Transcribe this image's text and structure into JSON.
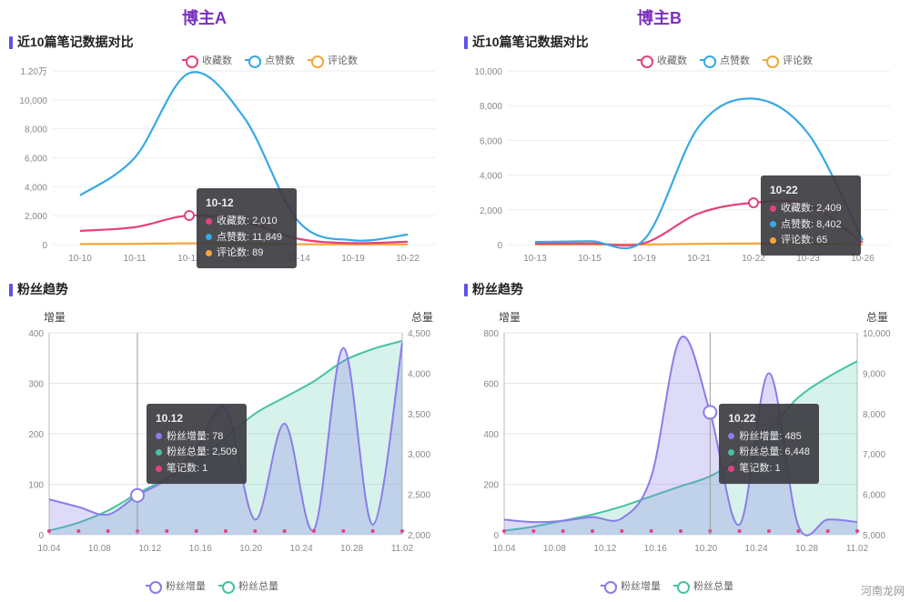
{
  "headers": {
    "a": "博主A",
    "b": "博主B",
    "color": "#7b2fbf"
  },
  "sections": {
    "notes_title": "近10篇笔记数据对比",
    "fans_title": "粉丝趋势"
  },
  "legend_top": [
    {
      "label": "收藏数",
      "color": "#e6407e"
    },
    {
      "label": "点赞数",
      "color": "#37a9e6"
    },
    {
      "label": "评论数",
      "color": "#f2a73b"
    }
  ],
  "legend_bottom": [
    {
      "label": "粉丝增量",
      "color": "#8a7de8"
    },
    {
      "label": "粉丝总量",
      "color": "#46c2a5"
    }
  ],
  "axis_titles": {
    "inc": "增量",
    "total": "总量"
  },
  "watermark": "河南龙网",
  "chartA_notes": {
    "ymax": 12000,
    "ylabels": [
      "0",
      "2,000",
      "4,000",
      "6,000",
      "8,000",
      "10,000",
      "1.20万"
    ],
    "x": [
      "10-10",
      "10-11",
      "10-12",
      "10-13",
      "10-14",
      "10-19",
      "10-22"
    ],
    "series": {
      "like": [
        3400,
        6000,
        11849,
        8800,
        1600,
        300,
        700
      ],
      "fav": [
        950,
        1200,
        2010,
        1600,
        400,
        100,
        200
      ],
      "comment": [
        40,
        55,
        89,
        60,
        25,
        10,
        18
      ]
    },
    "colors": {
      "like": "#37a9e6",
      "fav": "#e6407e",
      "comment": "#f2a73b"
    },
    "tooltip": {
      "title": "10-12",
      "rows": [
        {
          "color": "#e6407e",
          "text": "收藏数: 2,010"
        },
        {
          "color": "#37a9e6",
          "text": "点赞数: 11,849"
        },
        {
          "color": "#f2a73b",
          "text": "评论数: 89"
        }
      ],
      "ix": 2
    }
  },
  "chartB_notes": {
    "ymax": 10000,
    "ylabels": [
      "0",
      "2,000",
      "4,000",
      "6,000",
      "8,000",
      "10,000"
    ],
    "x": [
      "10-13",
      "10-15",
      "10-19",
      "10-21",
      "10-22",
      "10-23",
      "10-26"
    ],
    "series": {
      "like": [
        150,
        200,
        300,
        6800,
        8402,
        6400,
        250
      ],
      "fav": [
        60,
        70,
        90,
        1800,
        2409,
        2300,
        120
      ],
      "comment": [
        5,
        6,
        8,
        45,
        65,
        50,
        9
      ]
    },
    "colors": {
      "like": "#37a9e6",
      "fav": "#e6407e",
      "comment": "#f2a73b"
    },
    "tooltip": {
      "title": "10-22",
      "rows": [
        {
          "color": "#e6407e",
          "text": "收藏数: 2,409"
        },
        {
          "color": "#37a9e6",
          "text": "点赞数: 8,402"
        },
        {
          "color": "#f2a73b",
          "text": "评论数: 65"
        }
      ],
      "ix": 4
    }
  },
  "chartA_fans": {
    "x": [
      "10.04",
      "10.08",
      "10.12",
      "10.16",
      "10.20",
      "10.24",
      "10.28",
      "11.02"
    ],
    "inc_max": 400,
    "inc_ticks": [
      0,
      100,
      200,
      300,
      400
    ],
    "tot_min": 2000,
    "tot_max": 4500,
    "tot_ticks": [
      2000,
      2500,
      3000,
      3500,
      4000,
      4500
    ],
    "inc": [
      70,
      55,
      40,
      78,
      110,
      170,
      250,
      30,
      220,
      10,
      370,
      20,
      380
    ],
    "tot": [
      2050,
      2150,
      2300,
      2509,
      2700,
      2900,
      3200,
      3500,
      3700,
      3900,
      4150,
      4300,
      4400
    ],
    "colors": {
      "inc": "#8a7de8",
      "tot": "#46c2a5",
      "grid": "#e6e6e6",
      "marker": "#e6407e"
    },
    "tooltip": {
      "title": "10.12",
      "rows": [
        {
          "color": "#8a7de8",
          "text": "粉丝增量: 78"
        },
        {
          "color": "#46c2a5",
          "text": "粉丝总量: 2,509"
        },
        {
          "color": "#e6407e",
          "text": "笔记数: 1"
        }
      ],
      "ix": 3
    }
  },
  "chartB_fans": {
    "x": [
      "10.04",
      "10.08",
      "10.12",
      "10.16",
      "10.20",
      "10.24",
      "10.28",
      "11.02"
    ],
    "inc_max": 800,
    "inc_ticks": [
      0,
      200,
      400,
      600,
      800
    ],
    "tot_min": 5000,
    "tot_max": 10000,
    "tot_ticks": [
      5000,
      6000,
      7000,
      8000,
      9000,
      10000
    ],
    "inc": [
      60,
      50,
      55,
      70,
      65,
      230,
      780,
      485,
      40,
      640,
      35,
      60,
      50
    ],
    "tot": [
      5100,
      5200,
      5350,
      5500,
      5700,
      5950,
      6200,
      6448,
      6900,
      7600,
      8400,
      8900,
      9300
    ],
    "colors": {
      "inc": "#8a7de8",
      "tot": "#46c2a5",
      "grid": "#e6e6e6",
      "marker": "#e6407e"
    },
    "tooltip": {
      "title": "10.22",
      "rows": [
        {
          "color": "#8a7de8",
          "text": "粉丝增量: 485"
        },
        {
          "color": "#46c2a5",
          "text": "粉丝总量: 6,448"
        },
        {
          "color": "#e6407e",
          "text": "笔记数: 1"
        }
      ],
      "ix": 7
    }
  }
}
